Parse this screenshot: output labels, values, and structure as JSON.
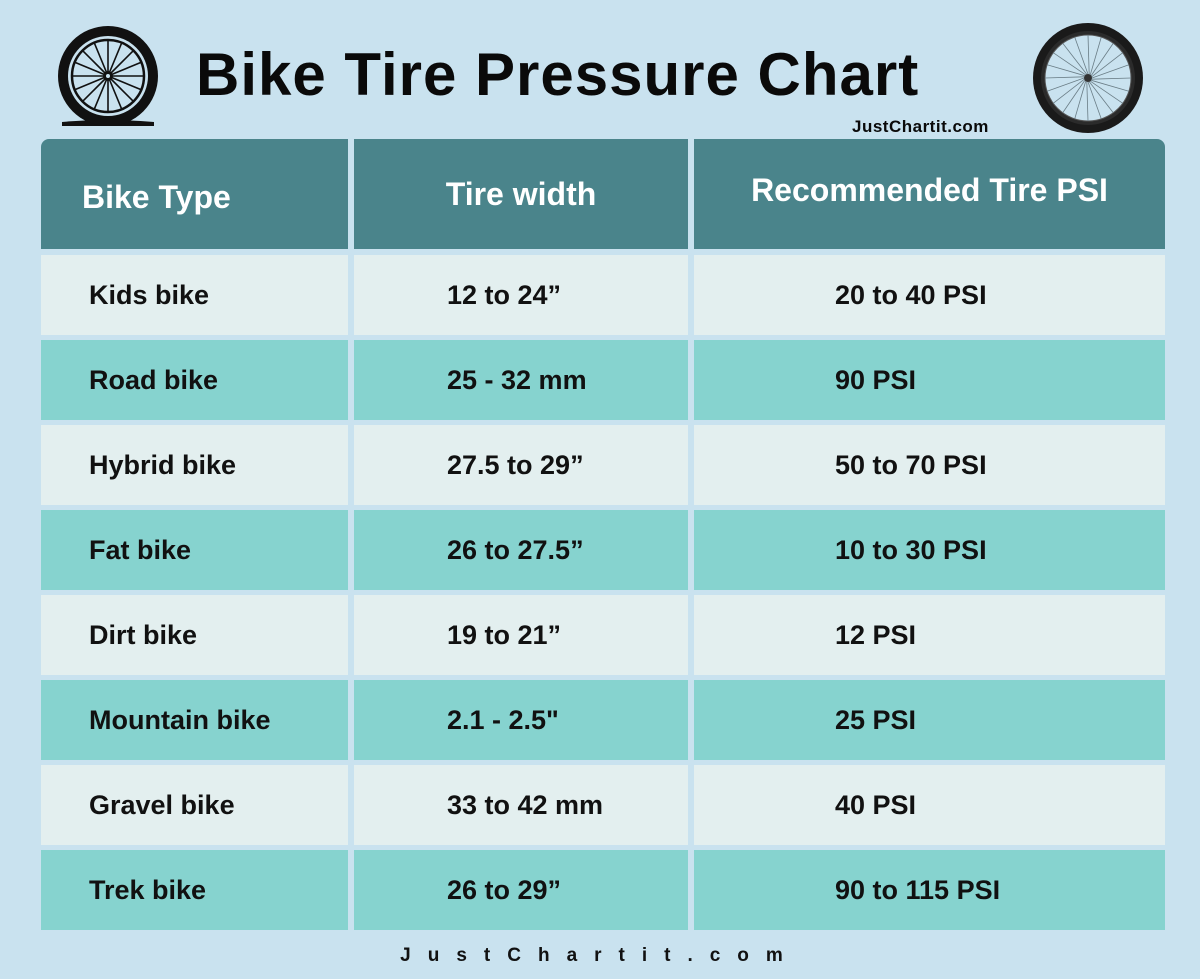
{
  "title": "Bike Tire Pressure Chart",
  "site_top": "JustChartit.com",
  "site_bottom": "JustChartit.com",
  "colors": {
    "background": "#c9e2ef",
    "header": "#4a848b",
    "row_light": "#e3efef",
    "row_teal": "#86d3cf"
  },
  "icons": {
    "left": "bike-wheel-icon",
    "right": "road-bike-wheel-icon"
  },
  "chart_data": {
    "type": "table",
    "title": "Bike Tire Pressure Chart",
    "columns": [
      "Bike Type",
      "Tire width",
      "Recommended Tire PSI"
    ],
    "rows": [
      [
        "Kids bike",
        "12 to 24”",
        "20 to 40 PSI"
      ],
      [
        "Road bike",
        "25 - 32 mm",
        "90 PSI"
      ],
      [
        "Hybrid bike",
        "27.5 to 29”",
        "50 to 70 PSI"
      ],
      [
        "Fat bike",
        "26 to 27.5”",
        "10 to 30 PSI"
      ],
      [
        "Dirt bike",
        "19 to 21”",
        "12 PSI"
      ],
      [
        "Mountain bike",
        "2.1 - 2.5\"",
        "25 PSI"
      ],
      [
        "Gravel bike",
        "33 to 42 mm",
        "40 PSI"
      ],
      [
        "Trek bike",
        "26 to 29”",
        "90 to 115 PSI"
      ]
    ]
  }
}
